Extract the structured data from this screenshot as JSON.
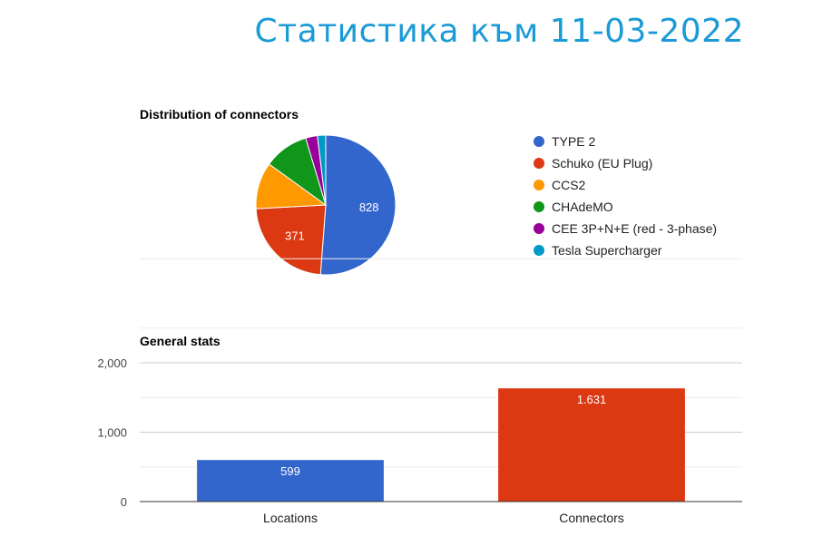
{
  "page_title": "Статистика към 11-03-2022",
  "chart_data": [
    {
      "type": "pie",
      "title": "Distribution of connectors",
      "slices": [
        {
          "label": "TYPE 2",
          "value": 828,
          "color": "#3366cc",
          "show_label": true
        },
        {
          "label": "Schuko (EU Plug)",
          "value": 371,
          "color": "#dc3912",
          "show_label": true
        },
        {
          "label": "CCS2",
          "value": 175,
          "color": "#ff9900",
          "show_label": false
        },
        {
          "label": "CHAdeMO",
          "value": 168,
          "color": "#109618",
          "show_label": false
        },
        {
          "label": "CEE 3P+N+E (red - 3-phase)",
          "value": 44,
          "color": "#990099",
          "show_label": false
        },
        {
          "label": "Tesla Supercharger",
          "value": 31,
          "color": "#0099c6",
          "show_label": false
        }
      ],
      "legend_position": "right"
    },
    {
      "type": "bar",
      "title": "General stats",
      "categories": [
        "Locations",
        "Connectors"
      ],
      "values": [
        599,
        1631
      ],
      "value_labels": [
        "599",
        "1.631"
      ],
      "colors": [
        "#3366cc",
        "#dc3912"
      ],
      "y_ticks": [
        "0",
        "1,000",
        "2,000"
      ],
      "ylim": [
        0,
        2000
      ],
      "grid": true
    }
  ]
}
